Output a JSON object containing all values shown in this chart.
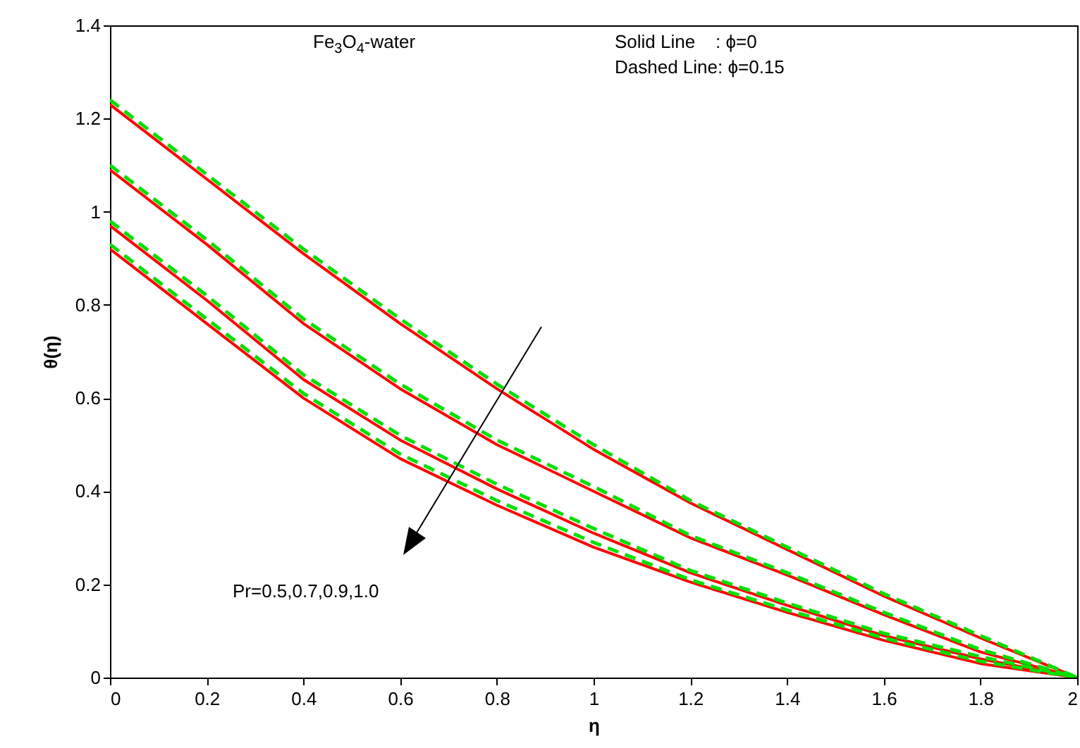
{
  "chart_data": {
    "type": "line",
    "xlabel": "η",
    "ylabel": "θ(η)",
    "x": [
      0,
      0.2,
      0.4,
      0.6,
      0.8,
      1.0,
      1.2,
      1.4,
      1.6,
      1.8,
      2.0
    ],
    "xlim": [
      0,
      2
    ],
    "xticks": [
      0,
      0.2,
      0.4,
      0.6,
      0.8,
      1,
      1.2,
      1.4,
      1.6,
      1.8,
      2
    ],
    "ylim": [
      0,
      1.4
    ],
    "yticks": [
      0,
      0.2,
      0.4,
      0.6,
      0.8,
      1,
      1.2,
      1.4
    ],
    "grid": false,
    "series": [
      {
        "color": "#ff0000",
        "line_style": "solid",
        "values": [
          1.23,
          1.07,
          0.91,
          0.76,
          0.62,
          0.49,
          0.375,
          0.275,
          0.175,
          0.085,
          0
        ]
      },
      {
        "color": "#ff0000",
        "line_style": "solid",
        "values": [
          1.09,
          0.93,
          0.76,
          0.62,
          0.5,
          0.4,
          0.3,
          0.22,
          0.135,
          0.055,
          0
        ]
      },
      {
        "color": "#ff0000",
        "line_style": "solid",
        "values": [
          0.97,
          0.81,
          0.64,
          0.51,
          0.405,
          0.31,
          0.225,
          0.155,
          0.09,
          0.04,
          0
        ]
      },
      {
        "color": "#ff0000",
        "line_style": "solid",
        "values": [
          0.92,
          0.76,
          0.6,
          0.47,
          0.37,
          0.28,
          0.205,
          0.14,
          0.08,
          0.03,
          0
        ]
      },
      {
        "color": "#00e000",
        "line_style": "dashed",
        "values": [
          1.24,
          1.08,
          0.92,
          0.77,
          0.63,
          0.5,
          0.38,
          0.28,
          0.18,
          0.09,
          0
        ]
      },
      {
        "color": "#00e000",
        "line_style": "dashed",
        "values": [
          1.1,
          0.94,
          0.77,
          0.63,
          0.51,
          0.41,
          0.305,
          0.225,
          0.14,
          0.06,
          0
        ]
      },
      {
        "color": "#00e000",
        "line_style": "dashed",
        "values": [
          0.98,
          0.82,
          0.65,
          0.52,
          0.415,
          0.32,
          0.23,
          0.16,
          0.095,
          0.045,
          0
        ]
      },
      {
        "color": "#00e000",
        "line_style": "dashed",
        "values": [
          0.93,
          0.77,
          0.61,
          0.48,
          0.38,
          0.29,
          0.21,
          0.145,
          0.085,
          0.035,
          0
        ]
      }
    ],
    "annotations": [
      "Fe$_{3}$O$_{4}$-water",
      "Solid Line    : ϕ=0",
      "Dashed Line: ϕ=0.15",
      "Pr=0.5,0.7,0.9,1.0"
    ]
  }
}
